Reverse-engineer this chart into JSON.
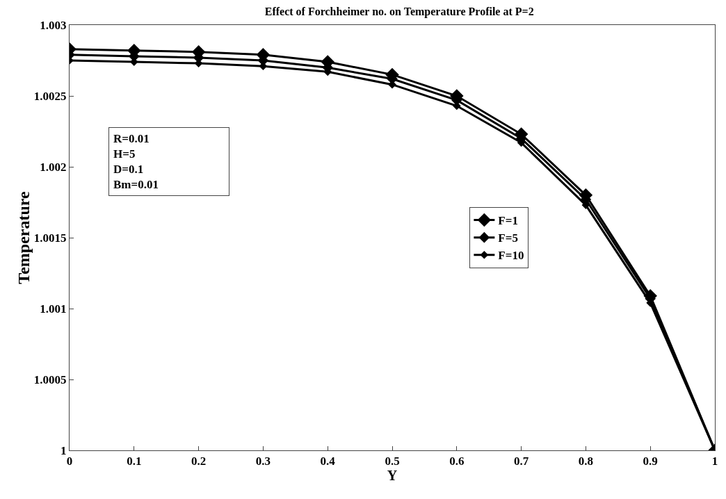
{
  "chart_data": {
    "type": "line",
    "title": "Effect of Forchheimer no. on Temperature Profile at P=2",
    "xlabel": "Y",
    "ylabel": "Temperature",
    "x": [
      0,
      0.1,
      0.2,
      0.3,
      0.4,
      0.5,
      0.6,
      0.7,
      0.8,
      0.9,
      1
    ],
    "series": [
      {
        "name": "F=1",
        "color": "#000000",
        "values": [
          1.00283,
          1.00282,
          1.00281,
          1.00279,
          1.00274,
          1.00265,
          1.0025,
          1.00223,
          1.0018,
          1.00109,
          1
        ]
      },
      {
        "name": "F=5",
        "color": "#000000",
        "values": [
          1.00279,
          1.00278,
          1.00277,
          1.00275,
          1.0027,
          1.00262,
          1.00247,
          1.0022,
          1.00177,
          1.00107,
          1
        ]
      },
      {
        "name": "F=10",
        "color": "#000000",
        "values": [
          1.00275,
          1.00274,
          1.00273,
          1.00271,
          1.00267,
          1.00258,
          1.00243,
          1.00217,
          1.00173,
          1.00104,
          1
        ]
      }
    ],
    "xlim": [
      0,
      1
    ],
    "xticks": [
      0,
      0.1,
      0.2,
      0.3,
      0.4,
      0.5,
      0.6,
      0.7,
      0.8,
      0.9,
      1
    ],
    "ylim": [
      1,
      1.003
    ],
    "yticks": [
      1,
      1.0005,
      1.001,
      1.0015,
      1.002,
      1.0025,
      1.003
    ],
    "annotations": [
      "R=0.01",
      "H=5",
      "D=0.1",
      "Bm=0.01"
    ],
    "legend": "right",
    "marker": "diamond",
    "line_style": "solid",
    "grid": false
  }
}
